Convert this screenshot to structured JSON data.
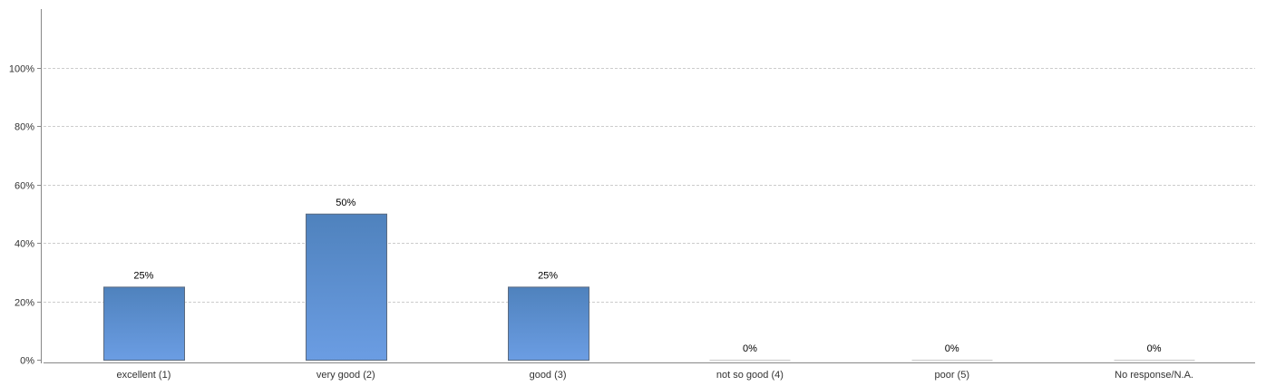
{
  "chart_data": {
    "type": "bar",
    "title": "",
    "xlabel": "",
    "ylabel": "",
    "categories": [
      "excellent (1)",
      "very good (2)",
      "good (3)",
      "not so good (4)",
      "poor (5)",
      "No response/N.A."
    ],
    "values": [
      25,
      50,
      25,
      0,
      0,
      0
    ],
    "data_labels": [
      "25%",
      "50%",
      "25%",
      "0%",
      "0%",
      "0%"
    ],
    "ylim": [
      0,
      120
    ],
    "yticks": [
      0,
      20,
      40,
      60,
      80,
      100
    ],
    "ytick_labels": [
      "0%",
      "20%",
      "40%",
      "60%",
      "80%",
      "100%"
    ],
    "grid": true,
    "legend": "none",
    "colors": {
      "bar_top": "#4f82bd",
      "bar_bottom": "#6b9de3",
      "bar_stroke": "#5a6a80",
      "grid": "#cccccc",
      "axis": "#888888"
    }
  }
}
